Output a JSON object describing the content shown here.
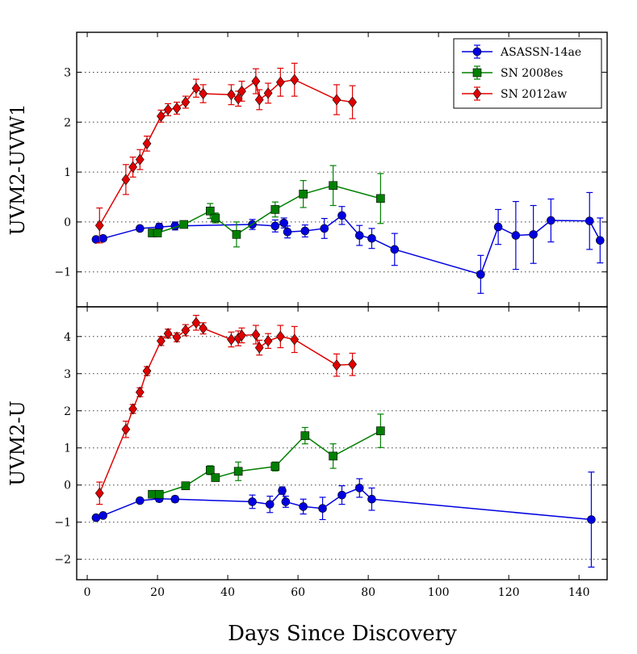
{
  "chart_data": [
    {
      "type": "line",
      "panel": "top",
      "title": "",
      "xlabel": "",
      "ylabel": "UVM2-UVW1",
      "xlim": [
        -3,
        148
      ],
      "ylim": [
        -1.7,
        3.8
      ],
      "yticks": [
        -1,
        0,
        1,
        2,
        3
      ],
      "yticklabels": [
        "−1",
        "0",
        "1",
        "2",
        "3"
      ],
      "grid": "horizontal-dotted",
      "legend": {
        "position": "top-right",
        "entries": [
          "ASASSN-14ae",
          "SN 2008es",
          "SN 2012aw"
        ]
      },
      "series": [
        {
          "name": "ASASSN-14ae",
          "color": "#0000e0",
          "marker": "circle",
          "x": [
            2.5,
            4.5,
            15,
            20.5,
            25,
            47,
            53.5,
            56,
            57,
            62,
            67.5,
            72.5,
            77.5,
            81,
            87.5,
            112,
            117,
            122,
            127,
            132,
            143,
            146
          ],
          "y": [
            -0.35,
            -0.33,
            -0.13,
            -0.1,
            -0.08,
            -0.05,
            -0.08,
            -0.02,
            -0.2,
            -0.18,
            -0.13,
            0.13,
            -0.27,
            -0.33,
            -0.55,
            -1.05,
            -0.1,
            -0.27,
            -0.25,
            0.03,
            0.02,
            -0.37
          ],
          "yerr": [
            0.04,
            0.05,
            0.05,
            0.07,
            0.08,
            0.1,
            0.12,
            0.1,
            0.12,
            0.12,
            0.2,
            0.18,
            0.2,
            0.2,
            0.32,
            0.38,
            0.35,
            0.68,
            0.58,
            0.43,
            0.57,
            0.45
          ]
        },
        {
          "name": "SN 2008es",
          "color": "#008000",
          "marker": "square",
          "x": [
            18.5,
            20,
            27.5,
            35,
            36.5,
            42.5,
            53.5,
            61.5,
            70,
            83.5
          ],
          "y": [
            -0.22,
            -0.22,
            -0.05,
            0.22,
            0.08,
            -0.25,
            0.25,
            0.56,
            0.73,
            0.47
          ],
          "yerr": [
            0.05,
            0.05,
            0.04,
            0.15,
            0.1,
            0.25,
            0.15,
            0.27,
            0.4,
            0.5
          ]
        },
        {
          "name": "SN 2012aw",
          "color": "#e00000",
          "marker": "diamond",
          "x": [
            3.5,
            11,
            13,
            15,
            17,
            21,
            23,
            25.5,
            28,
            31,
            33,
            41,
            43,
            44,
            48,
            49,
            51.5,
            55,
            59,
            71,
            75.5
          ],
          "y": [
            -0.07,
            0.85,
            1.1,
            1.25,
            1.57,
            2.12,
            2.25,
            2.28,
            2.4,
            2.68,
            2.57,
            2.55,
            2.47,
            2.62,
            2.82,
            2.45,
            2.58,
            2.8,
            2.85,
            2.45,
            2.4
          ],
          "yerr": [
            0.35,
            0.3,
            0.2,
            0.2,
            0.15,
            0.12,
            0.12,
            0.12,
            0.12,
            0.18,
            0.18,
            0.2,
            0.15,
            0.2,
            0.25,
            0.2,
            0.2,
            0.28,
            0.33,
            0.3,
            0.33
          ]
        }
      ]
    },
    {
      "type": "line",
      "panel": "bottom",
      "title": "",
      "xlabel": "Days Since Discovery",
      "ylabel": "UVM2-U",
      "xlim": [
        -3,
        148
      ],
      "ylim": [
        -2.55,
        4.8
      ],
      "xticks": [
        0,
        20,
        40,
        60,
        80,
        100,
        120,
        140
      ],
      "xticklabels": [
        "0",
        "20",
        "40",
        "60",
        "80",
        "100",
        "120",
        "140"
      ],
      "yticks": [
        -2,
        -1,
        0,
        1,
        2,
        3,
        4
      ],
      "yticklabels": [
        "−2",
        "−1",
        "0",
        "1",
        "2",
        "3",
        "4"
      ],
      "grid": "horizontal-dotted",
      "series": [
        {
          "name": "ASASSN-14ae",
          "color": "#0000e0",
          "marker": "circle",
          "x": [
            2.5,
            4.5,
            15,
            20.5,
            25,
            47,
            52,
            55.5,
            56.5,
            61.5,
            67,
            72.5,
            77.5,
            81,
            143.5
          ],
          "y": [
            -0.88,
            -0.82,
            -0.42,
            -0.37,
            -0.38,
            -0.45,
            -0.52,
            -0.15,
            -0.45,
            -0.58,
            -0.63,
            -0.27,
            -0.08,
            -0.38,
            -0.93
          ],
          "yerr": [
            0.04,
            0.05,
            0.05,
            0.08,
            0.08,
            0.18,
            0.22,
            0.1,
            0.15,
            0.2,
            0.3,
            0.25,
            0.25,
            0.3,
            1.28
          ]
        },
        {
          "name": "SN 2008es",
          "color": "#008000",
          "marker": "square",
          "x": [
            18.5,
            20.5,
            28,
            35,
            36.5,
            43,
            53.5,
            62,
            70,
            83.5
          ],
          "y": [
            -0.25,
            -0.25,
            -0.02,
            0.4,
            0.2,
            0.37,
            0.5,
            1.33,
            0.78,
            1.46
          ],
          "yerr": [
            0.05,
            0.05,
            0.04,
            0.12,
            0.08,
            0.25,
            0.12,
            0.22,
            0.33,
            0.45
          ]
        },
        {
          "name": "SN 2012aw",
          "color": "#e00000",
          "marker": "diamond",
          "x": [
            3.5,
            11,
            13,
            15,
            17,
            21,
            23,
            25.5,
            28,
            31,
            33,
            41,
            43,
            44,
            48,
            49,
            51.5,
            55,
            59,
            71,
            75.5
          ],
          "y": [
            -0.22,
            1.5,
            2.05,
            2.5,
            3.07,
            3.88,
            4.08,
            3.98,
            4.17,
            4.37,
            4.22,
            3.92,
            3.95,
            4.03,
            4.05,
            3.7,
            3.88,
            4.0,
            3.92,
            3.23,
            3.25
          ],
          "yerr": [
            0.3,
            0.22,
            0.12,
            0.12,
            0.12,
            0.12,
            0.12,
            0.12,
            0.15,
            0.2,
            0.15,
            0.2,
            0.2,
            0.2,
            0.25,
            0.2,
            0.2,
            0.3,
            0.35,
            0.3,
            0.3
          ]
        }
      ]
    }
  ]
}
